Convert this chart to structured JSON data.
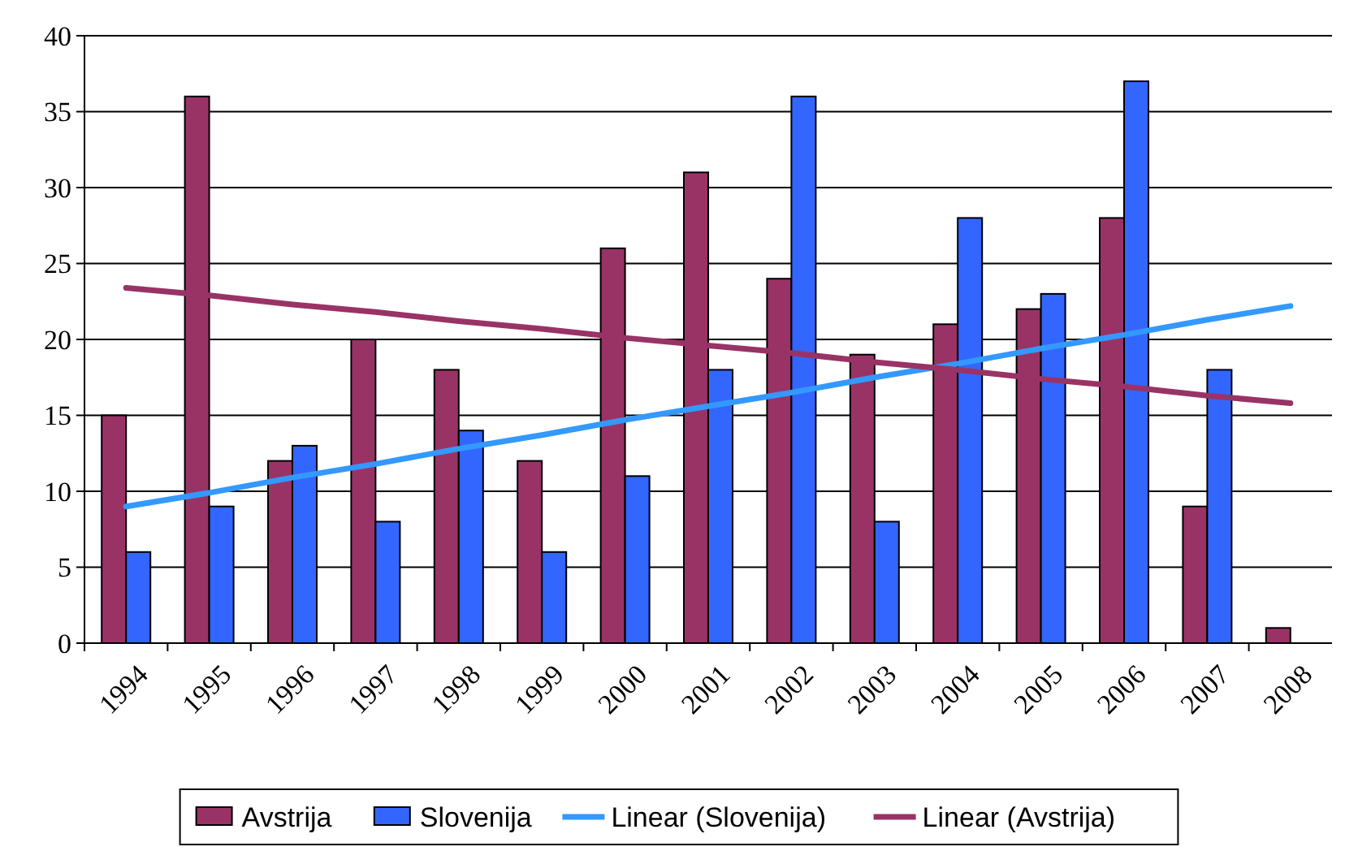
{
  "chart_data": {
    "type": "bar",
    "categories": [
      "1994",
      "1995",
      "1996",
      "1997",
      "1998",
      "1999",
      "2000",
      "2001",
      "2002",
      "2003",
      "2004",
      "2005",
      "2006",
      "2007",
      "2008"
    ],
    "series": [
      {
        "name": "Avstrija",
        "color": "#993366",
        "values": [
          15,
          36,
          12,
          20,
          18,
          12,
          26,
          31,
          24,
          19,
          21,
          22,
          28,
          9,
          1
        ]
      },
      {
        "name": "Slovenija",
        "color": "#3366ff",
        "values": [
          6,
          9,
          13,
          8,
          14,
          6,
          11,
          18,
          36,
          8,
          28,
          23,
          37,
          18,
          null
        ]
      },
      {
        "name": "Linear (Slovenija)",
        "type": "line",
        "color": "#3399ff",
        "values": [
          9.0,
          9.9,
          10.9,
          11.8,
          12.8,
          13.7,
          14.7,
          15.6,
          16.5,
          17.5,
          18.4,
          19.4,
          20.3,
          21.3,
          22.2
        ]
      },
      {
        "name": "Linear (Avstrija)",
        "type": "line",
        "color": "#993366",
        "values": [
          23.4,
          22.9,
          22.3,
          21.8,
          21.2,
          20.7,
          20.1,
          19.6,
          19.1,
          18.5,
          18.0,
          17.4,
          16.9,
          16.3,
          15.8
        ]
      }
    ],
    "ylim": [
      0,
      40
    ],
    "yticks": [
      0,
      5,
      10,
      15,
      20,
      25,
      30,
      35,
      40
    ],
    "grid": "y",
    "legend": "bottom"
  }
}
